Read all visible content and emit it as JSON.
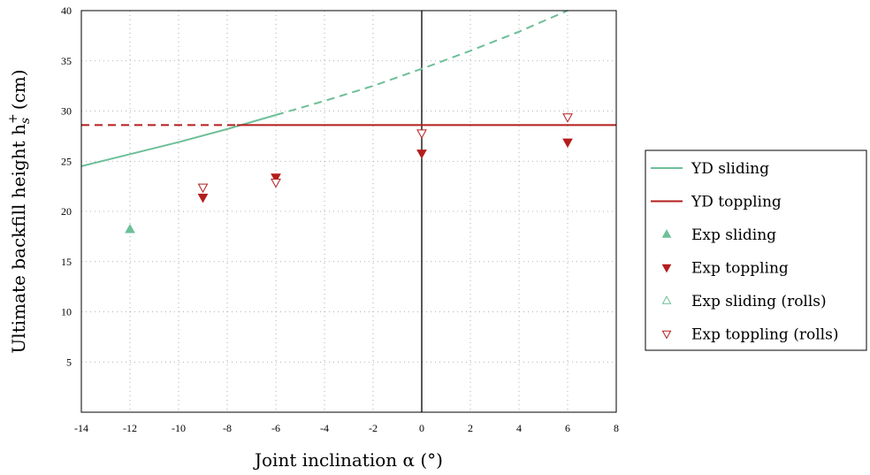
{
  "chart_data": {
    "type": "line",
    "xlabel": "Joint inclination α (°)",
    "ylabel": "Ultimate backfill height h",
    "ylabel_sub": "s",
    "ylabel_sup": "+",
    "ylabel_unit": "(cm)",
    "xlim": [
      -14,
      8
    ],
    "ylim": [
      0,
      40
    ],
    "xticks": [
      -14,
      -12,
      -10,
      -8,
      -6,
      -4,
      -2,
      0,
      2,
      4,
      6,
      8
    ],
    "yticks": [
      5,
      10,
      15,
      20,
      25,
      30,
      35,
      40
    ],
    "grid": true,
    "legend_position": "right",
    "vertical_reference_x": 0,
    "colors": {
      "sliding": "#6dbf98",
      "toppling": "#b51d1d"
    },
    "series": [
      {
        "name": "YD sliding",
        "kind": "line",
        "color": "#6dbf98",
        "solid": [
          [
            -14,
            24.5
          ],
          [
            -12,
            25.7
          ],
          [
            -10,
            26.9
          ],
          [
            -8,
            28.2
          ],
          [
            -6,
            29.6
          ]
        ],
        "dashed": [
          [
            -6,
            29.6
          ],
          [
            -4,
            31.0
          ],
          [
            -2,
            32.5
          ],
          [
            0,
            34.2
          ],
          [
            2,
            36.0
          ],
          [
            4,
            37.9
          ],
          [
            6,
            40.0
          ]
        ]
      },
      {
        "name": "YD toppling",
        "kind": "line",
        "color": "#b51d1d",
        "dashed": [
          [
            -14,
            28.6
          ],
          [
            -7.6,
            28.6
          ]
        ],
        "solid": [
          [
            -7.6,
            28.6
          ],
          [
            8,
            28.6
          ]
        ]
      },
      {
        "name": "Exp sliding",
        "kind": "marker",
        "marker": "triangle-up-filled",
        "color": "#6dbf98",
        "points": [
          [
            -12,
            18.2
          ]
        ]
      },
      {
        "name": "Exp toppling",
        "kind": "marker",
        "marker": "triangle-down-filled",
        "color": "#b51d1d",
        "points": [
          [
            -9,
            21.4
          ],
          [
            -6,
            23.4
          ],
          [
            0,
            25.8
          ],
          [
            6,
            26.9
          ]
        ]
      },
      {
        "name": "Exp sliding (rolls)",
        "kind": "marker",
        "marker": "triangle-up-open",
        "color": "#6dbf98",
        "points": []
      },
      {
        "name": "Exp toppling (rolls)",
        "kind": "marker",
        "marker": "triangle-down-open",
        "color": "#b51d1d",
        "points": [
          [
            -9,
            22.4
          ],
          [
            -6,
            22.9
          ],
          [
            0,
            27.8
          ],
          [
            6,
            29.4
          ]
        ]
      }
    ]
  }
}
